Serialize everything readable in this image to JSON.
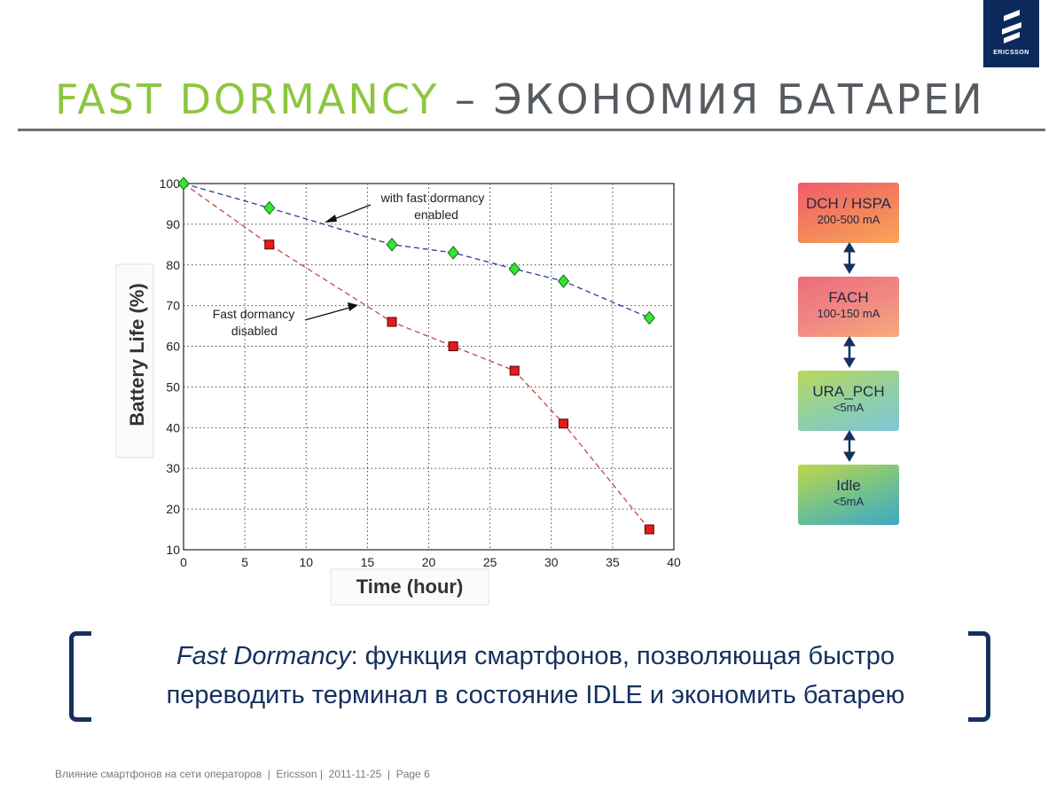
{
  "logo": {
    "brand": "ERICSSON",
    "icon": "ericsson-logo-icon",
    "color": "#0b2a5b"
  },
  "slide": {
    "title_highlight": "FAST DORMANCY",
    "title_rest": " – ЭКОНОМИЯ БАТАРЕИ",
    "highlight_color": "#8cc63f"
  },
  "chart_data": {
    "type": "line",
    "xlabel": "Time (hour)",
    "ylabel": "Battery Life (%)",
    "xlim": [
      0,
      40
    ],
    "ylim": [
      10,
      100
    ],
    "xticks": [
      0,
      5,
      10,
      15,
      20,
      25,
      30,
      35,
      40
    ],
    "yticks": [
      10,
      20,
      30,
      40,
      50,
      60,
      70,
      80,
      90,
      100
    ],
    "grid": true,
    "series": [
      {
        "label": "with fast dormancy enabled",
        "color": "#2a3a96",
        "marker": "diamond",
        "marker_color": "#33e633",
        "x": [
          0,
          7,
          17,
          22,
          27,
          31,
          38
        ],
        "y": [
          100,
          94,
          85,
          83,
          79,
          76,
          67
        ]
      },
      {
        "label": "Fast dormancy disabled",
        "color": "#c04848",
        "marker": "square",
        "marker_color": "#e31b1b",
        "x": [
          0,
          7,
          17,
          22,
          27,
          31,
          38
        ],
        "y": [
          100,
          85,
          66,
          60,
          54,
          41,
          15
        ]
      }
    ],
    "annotations": [
      {
        "line1": "with fast dormancy",
        "line2": "enabled"
      },
      {
        "line1": "Fast dormancy",
        "line2": "disabled"
      }
    ]
  },
  "states": [
    {
      "name": "DCH / HSPA",
      "current": "200-500 mA"
    },
    {
      "name": "FACH",
      "current": "100-150 mA"
    },
    {
      "name": "URA_PCH",
      "current": "<5mA"
    },
    {
      "name": "Idle",
      "current": "<5mA"
    }
  ],
  "quote": {
    "emphasis": "Fast Dormancy",
    "line1_rest": ": функция смартфонов, позволяющая быстро",
    "line2": "переводить терминал в состояние IDLE и экономить батарею"
  },
  "footer": "Влияние смартфонов на сети операторов  |  Ericsson |  2011-11-25  |  Page 6"
}
